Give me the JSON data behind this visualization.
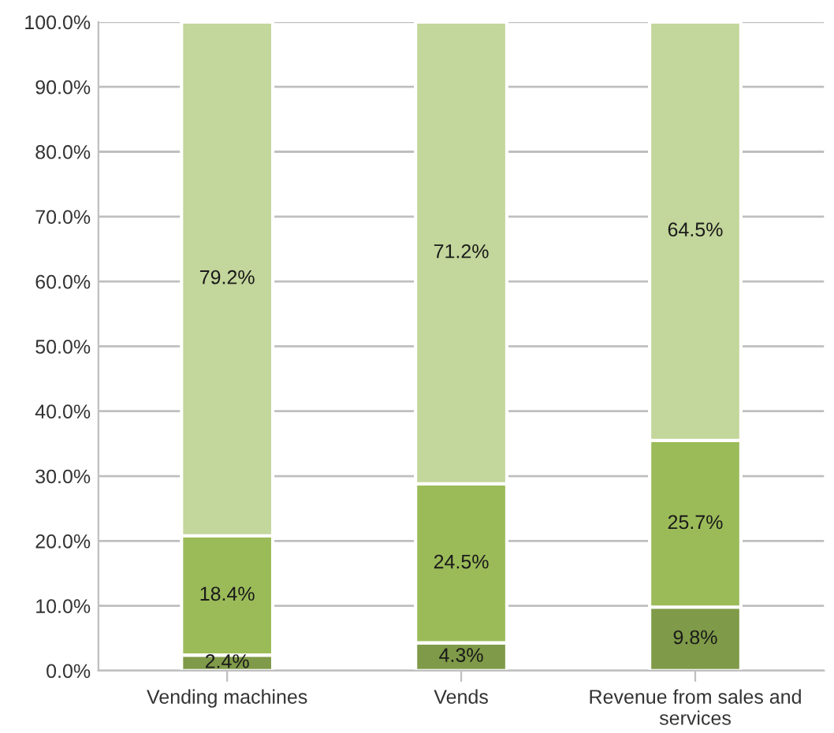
{
  "chart_data": {
    "type": "bar",
    "stacked": true,
    "categories": [
      "Vending machines",
      "Vends",
      "Revenue from sales and services"
    ],
    "series": [
      {
        "color": "#7f9a48",
        "values": [
          2.4,
          4.3,
          9.8
        ],
        "value_labels": [
          "2.4%",
          "4.3%",
          "9.8%"
        ]
      },
      {
        "color": "#9bbb59",
        "values": [
          18.4,
          24.5,
          25.7
        ],
        "value_labels": [
          "18.4%",
          "24.5%",
          "25.7%"
        ]
      },
      {
        "color": "#c3d69b",
        "values": [
          79.2,
          71.2,
          64.5
        ],
        "value_labels": [
          "79.2%",
          "71.2%",
          "64.5%"
        ]
      }
    ],
    "ylim": [
      0,
      100
    ],
    "yticks": [
      {
        "value": 0,
        "label": "0.0%"
      },
      {
        "value": 10,
        "label": "10.0%"
      },
      {
        "value": 20,
        "label": "20.0%"
      },
      {
        "value": 30,
        "label": "30.0%"
      },
      {
        "value": 40,
        "label": "40.0%"
      },
      {
        "value": 50,
        "label": "50.0%"
      },
      {
        "value": 60,
        "label": "60.0%"
      },
      {
        "value": 70,
        "label": "70.0%"
      },
      {
        "value": 80,
        "label": "80.0%"
      },
      {
        "value": 90,
        "label": "90.0%"
      },
      {
        "value": 100,
        "label": "100.0%"
      }
    ],
    "grid": "y"
  }
}
